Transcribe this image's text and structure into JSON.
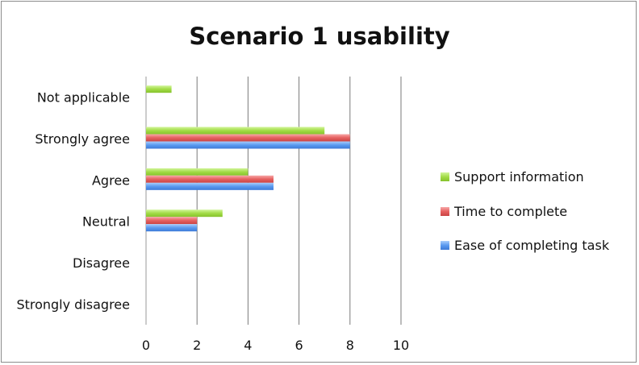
{
  "chart_data": {
    "type": "bar",
    "orientation": "horizontal",
    "title": "Scenario 1 usability",
    "categories": [
      "Strongly disagree",
      "Disagree",
      "Neutral",
      "Agree",
      "Strongly agree",
      "Not applicable"
    ],
    "series": [
      {
        "name": "Ease of completing task",
        "values": [
          0,
          0,
          2,
          5,
          8,
          0
        ],
        "color": "#4f8fe6"
      },
      {
        "name": "Time to complete",
        "values": [
          0,
          0,
          2,
          5,
          8,
          0
        ],
        "color": "#e05a5a"
      },
      {
        "name": "Support information",
        "values": [
          0,
          0,
          3,
          4,
          7,
          1
        ],
        "color": "#99d63a"
      }
    ],
    "xlim": [
      0,
      10
    ],
    "xticks": [
      "0",
      "2",
      "4",
      "6",
      "8",
      "10"
    ],
    "xlabel": "",
    "ylabel": "",
    "grid": "vertical",
    "legend": [
      "Support information",
      "Time to complete",
      "Ease of completing task"
    ],
    "legend_position": "right"
  }
}
